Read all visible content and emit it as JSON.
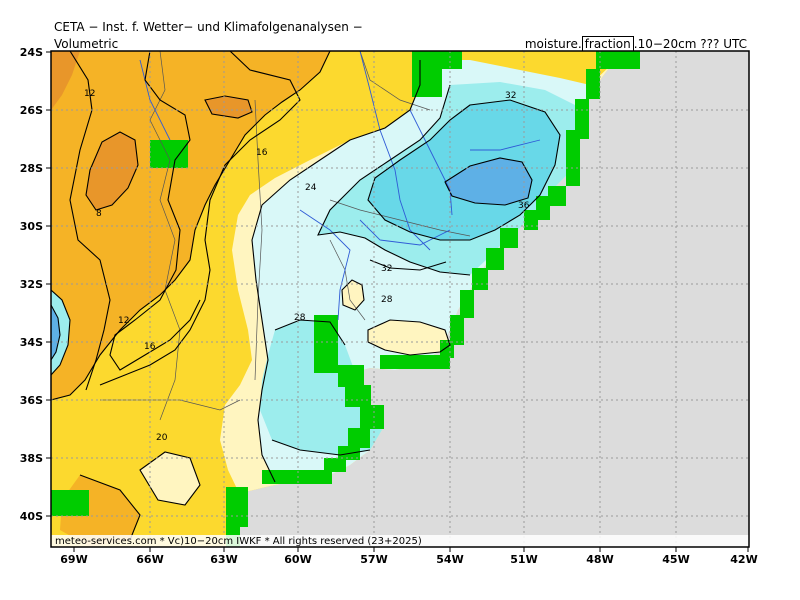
{
  "header": {
    "title": "CETA − Inst. f. Wetter− und Klimafolgenanalysen −",
    "subtitle": "Volumetric",
    "var_prefix": "moisture.",
    "var_box": "fraction",
    "var_suffix": ".10−20cm ??? UTC"
  },
  "footer": "meteo-services.com * Vc)10−20cm IWKF * All rights reserved (23+2025)",
  "axes": {
    "lat_labels": [
      "24S",
      "26S",
      "28S",
      "30S",
      "32S",
      "34S",
      "36S",
      "38S",
      "40S"
    ],
    "lon_labels": [
      "69W",
      "66W",
      "63W",
      "60W",
      "57W",
      "54W",
      "51W",
      "48W",
      "45W",
      "42W"
    ]
  },
  "contour_labels": [
    "12",
    "8",
    "12",
    "16",
    "16",
    "24",
    "32",
    "36",
    "32",
    "28",
    "28",
    "20"
  ],
  "colors": {
    "ocean": "#dcdcdc",
    "dark_orange": "#e8962a",
    "orange": "#f5b326",
    "yellow": "#fcd92e",
    "cream": "#fff5c0",
    "pale_cyan": "#d9f8f8",
    "light_cyan": "#9ceded",
    "cyan": "#68d8e8",
    "blue": "#5eb0e6",
    "mask_green": "#00cc00",
    "contour": "#000000",
    "river": "#2f5bd6",
    "border": "#555555",
    "grid": "#9a9a9a"
  }
}
